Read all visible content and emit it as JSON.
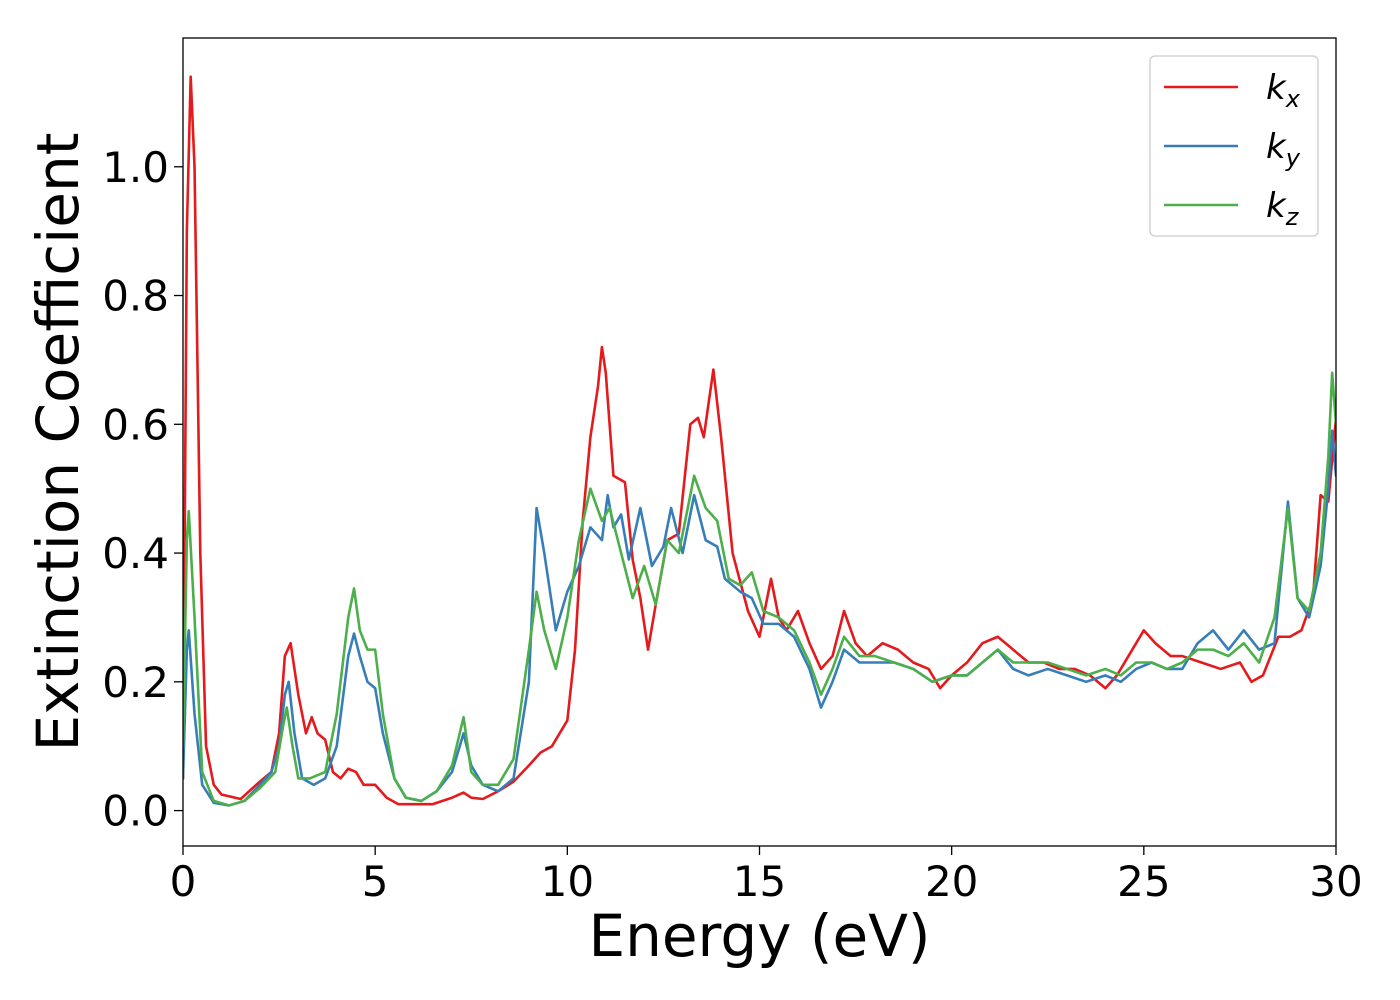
{
  "chart_data": {
    "type": "line",
    "title": "",
    "xlabel": "Energy (eV)",
    "ylabel": "Extinction Coefficient",
    "xlim": [
      0,
      30
    ],
    "ylim": [
      -0.055,
      1.2
    ],
    "xticks": [
      0,
      5,
      10,
      15,
      20,
      25,
      30
    ],
    "xtick_labels": [
      "0",
      "5",
      "10",
      "15",
      "20",
      "25",
      "30"
    ],
    "yticks": [
      0.0,
      0.2,
      0.4,
      0.6,
      0.8,
      1.0
    ],
    "ytick_labels": [
      "0.0",
      "0.2",
      "0.4",
      "0.6",
      "0.8",
      "1.0"
    ],
    "grid": false,
    "legend_position": "top-right",
    "series": [
      {
        "name": "k_x",
        "label_base": "k",
        "label_sub": "x",
        "color": "#e41a1c",
        "points": [
          [
            0,
            0.05
          ],
          [
            0.1,
            0.9
          ],
          [
            0.2,
            1.14
          ],
          [
            0.3,
            1.0
          ],
          [
            0.45,
            0.4
          ],
          [
            0.6,
            0.1
          ],
          [
            0.8,
            0.04
          ],
          [
            1.0,
            0.025
          ],
          [
            1.5,
            0.018
          ],
          [
            2.0,
            0.045
          ],
          [
            2.3,
            0.06
          ],
          [
            2.5,
            0.12
          ],
          [
            2.65,
            0.24
          ],
          [
            2.8,
            0.26
          ],
          [
            3.0,
            0.18
          ],
          [
            3.2,
            0.12
          ],
          [
            3.35,
            0.145
          ],
          [
            3.5,
            0.12
          ],
          [
            3.7,
            0.11
          ],
          [
            3.9,
            0.06
          ],
          [
            4.1,
            0.05
          ],
          [
            4.3,
            0.065
          ],
          [
            4.5,
            0.06
          ],
          [
            4.7,
            0.04
          ],
          [
            5.0,
            0.04
          ],
          [
            5.3,
            0.02
          ],
          [
            5.6,
            0.01
          ],
          [
            6.0,
            0.01
          ],
          [
            6.5,
            0.01
          ],
          [
            7.0,
            0.02
          ],
          [
            7.3,
            0.028
          ],
          [
            7.5,
            0.02
          ],
          [
            7.8,
            0.018
          ],
          [
            8.2,
            0.03
          ],
          [
            8.6,
            0.045
          ],
          [
            9.0,
            0.07
          ],
          [
            9.3,
            0.09
          ],
          [
            9.6,
            0.1
          ],
          [
            10.0,
            0.14
          ],
          [
            10.2,
            0.25
          ],
          [
            10.4,
            0.45
          ],
          [
            10.6,
            0.58
          ],
          [
            10.8,
            0.66
          ],
          [
            10.9,
            0.72
          ],
          [
            11.0,
            0.68
          ],
          [
            11.2,
            0.52
          ],
          [
            11.5,
            0.51
          ],
          [
            11.7,
            0.39
          ],
          [
            11.9,
            0.33
          ],
          [
            12.1,
            0.25
          ],
          [
            12.3,
            0.32
          ],
          [
            12.6,
            0.42
          ],
          [
            12.9,
            0.43
          ],
          [
            13.2,
            0.6
          ],
          [
            13.4,
            0.61
          ],
          [
            13.55,
            0.58
          ],
          [
            13.8,
            0.685
          ],
          [
            14.0,
            0.58
          ],
          [
            14.3,
            0.4
          ],
          [
            14.7,
            0.31
          ],
          [
            15.0,
            0.27
          ],
          [
            15.3,
            0.36
          ],
          [
            15.5,
            0.3
          ],
          [
            15.7,
            0.28
          ],
          [
            16.0,
            0.31
          ],
          [
            16.3,
            0.26
          ],
          [
            16.6,
            0.22
          ],
          [
            16.9,
            0.24
          ],
          [
            17.2,
            0.31
          ],
          [
            17.5,
            0.26
          ],
          [
            17.8,
            0.24
          ],
          [
            18.2,
            0.26
          ],
          [
            18.6,
            0.25
          ],
          [
            19.0,
            0.23
          ],
          [
            19.4,
            0.22
          ],
          [
            19.7,
            0.19
          ],
          [
            20.0,
            0.21
          ],
          [
            20.4,
            0.23
          ],
          [
            20.8,
            0.26
          ],
          [
            21.2,
            0.27
          ],
          [
            21.6,
            0.25
          ],
          [
            22.0,
            0.23
          ],
          [
            22.4,
            0.23
          ],
          [
            22.8,
            0.22
          ],
          [
            23.2,
            0.22
          ],
          [
            23.6,
            0.21
          ],
          [
            24.0,
            0.19
          ],
          [
            24.3,
            0.21
          ],
          [
            24.6,
            0.24
          ],
          [
            25.0,
            0.28
          ],
          [
            25.3,
            0.26
          ],
          [
            25.7,
            0.24
          ],
          [
            26.0,
            0.24
          ],
          [
            26.5,
            0.23
          ],
          [
            27.0,
            0.22
          ],
          [
            27.5,
            0.23
          ],
          [
            27.8,
            0.2
          ],
          [
            28.1,
            0.21
          ],
          [
            28.5,
            0.27
          ],
          [
            28.8,
            0.27
          ],
          [
            29.1,
            0.28
          ],
          [
            29.4,
            0.33
          ],
          [
            29.6,
            0.49
          ],
          [
            29.8,
            0.48
          ],
          [
            30.0,
            0.61
          ]
        ]
      },
      {
        "name": "k_y",
        "label_base": "k",
        "label_sub": "y",
        "color": "#377eb8",
        "points": [
          [
            0,
            0.05
          ],
          [
            0.1,
            0.25
          ],
          [
            0.15,
            0.28
          ],
          [
            0.3,
            0.15
          ],
          [
            0.5,
            0.04
          ],
          [
            0.8,
            0.012
          ],
          [
            1.2,
            0.008
          ],
          [
            1.6,
            0.015
          ],
          [
            2.0,
            0.04
          ],
          [
            2.3,
            0.06
          ],
          [
            2.5,
            0.1
          ],
          [
            2.65,
            0.18
          ],
          [
            2.75,
            0.2
          ],
          [
            2.9,
            0.12
          ],
          [
            3.1,
            0.05
          ],
          [
            3.4,
            0.04
          ],
          [
            3.7,
            0.05
          ],
          [
            4.0,
            0.1
          ],
          [
            4.3,
            0.24
          ],
          [
            4.45,
            0.275
          ],
          [
            4.6,
            0.24
          ],
          [
            4.8,
            0.2
          ],
          [
            5.0,
            0.19
          ],
          [
            5.2,
            0.12
          ],
          [
            5.5,
            0.05
          ],
          [
            5.8,
            0.02
          ],
          [
            6.2,
            0.015
          ],
          [
            6.6,
            0.03
          ],
          [
            7.0,
            0.06
          ],
          [
            7.3,
            0.12
          ],
          [
            7.5,
            0.07
          ],
          [
            7.8,
            0.04
          ],
          [
            8.2,
            0.03
          ],
          [
            8.6,
            0.05
          ],
          [
            9.0,
            0.2
          ],
          [
            9.2,
            0.47
          ],
          [
            9.4,
            0.4
          ],
          [
            9.7,
            0.28
          ],
          [
            10.0,
            0.34
          ],
          [
            10.3,
            0.38
          ],
          [
            10.6,
            0.44
          ],
          [
            10.9,
            0.42
          ],
          [
            11.05,
            0.49
          ],
          [
            11.2,
            0.44
          ],
          [
            11.4,
            0.46
          ],
          [
            11.6,
            0.39
          ],
          [
            11.9,
            0.47
          ],
          [
            12.2,
            0.38
          ],
          [
            12.5,
            0.41
          ],
          [
            12.7,
            0.47
          ],
          [
            13.0,
            0.4
          ],
          [
            13.3,
            0.49
          ],
          [
            13.6,
            0.42
          ],
          [
            13.9,
            0.41
          ],
          [
            14.1,
            0.36
          ],
          [
            14.5,
            0.34
          ],
          [
            14.8,
            0.33
          ],
          [
            15.1,
            0.29
          ],
          [
            15.5,
            0.29
          ],
          [
            15.9,
            0.27
          ],
          [
            16.3,
            0.22
          ],
          [
            16.6,
            0.16
          ],
          [
            16.9,
            0.2
          ],
          [
            17.2,
            0.25
          ],
          [
            17.6,
            0.23
          ],
          [
            18.0,
            0.23
          ],
          [
            18.5,
            0.23
          ],
          [
            19.0,
            0.22
          ],
          [
            19.5,
            0.2
          ],
          [
            20.0,
            0.21
          ],
          [
            20.4,
            0.21
          ],
          [
            20.8,
            0.23
          ],
          [
            21.2,
            0.25
          ],
          [
            21.6,
            0.22
          ],
          [
            22.0,
            0.21
          ],
          [
            22.5,
            0.22
          ],
          [
            23.0,
            0.21
          ],
          [
            23.5,
            0.2
          ],
          [
            24.0,
            0.21
          ],
          [
            24.4,
            0.2
          ],
          [
            24.8,
            0.22
          ],
          [
            25.2,
            0.23
          ],
          [
            25.6,
            0.22
          ],
          [
            26.0,
            0.22
          ],
          [
            26.4,
            0.26
          ],
          [
            26.8,
            0.28
          ],
          [
            27.2,
            0.25
          ],
          [
            27.6,
            0.28
          ],
          [
            28.0,
            0.25
          ],
          [
            28.4,
            0.26
          ],
          [
            28.75,
            0.48
          ],
          [
            29.0,
            0.33
          ],
          [
            29.3,
            0.3
          ],
          [
            29.6,
            0.38
          ],
          [
            29.8,
            0.5
          ],
          [
            29.9,
            0.59
          ],
          [
            30.0,
            0.52
          ]
        ]
      },
      {
        "name": "k_z",
        "label_base": "k",
        "label_sub": "z",
        "color": "#4daf4a",
        "points": [
          [
            0,
            0.1
          ],
          [
            0.1,
            0.42
          ],
          [
            0.15,
            0.465
          ],
          [
            0.3,
            0.3
          ],
          [
            0.5,
            0.06
          ],
          [
            0.8,
            0.015
          ],
          [
            1.2,
            0.008
          ],
          [
            1.6,
            0.015
          ],
          [
            2.0,
            0.035
          ],
          [
            2.4,
            0.06
          ],
          [
            2.6,
            0.13
          ],
          [
            2.7,
            0.16
          ],
          [
            2.85,
            0.1
          ],
          [
            3.0,
            0.05
          ],
          [
            3.3,
            0.05
          ],
          [
            3.7,
            0.06
          ],
          [
            4.0,
            0.15
          ],
          [
            4.3,
            0.3
          ],
          [
            4.45,
            0.345
          ],
          [
            4.6,
            0.28
          ],
          [
            4.8,
            0.25
          ],
          [
            5.0,
            0.25
          ],
          [
            5.2,
            0.15
          ],
          [
            5.5,
            0.05
          ],
          [
            5.8,
            0.02
          ],
          [
            6.2,
            0.015
          ],
          [
            6.6,
            0.03
          ],
          [
            7.0,
            0.07
          ],
          [
            7.3,
            0.145
          ],
          [
            7.5,
            0.06
          ],
          [
            7.8,
            0.04
          ],
          [
            8.2,
            0.04
          ],
          [
            8.6,
            0.08
          ],
          [
            9.0,
            0.25
          ],
          [
            9.2,
            0.34
          ],
          [
            9.4,
            0.28
          ],
          [
            9.7,
            0.22
          ],
          [
            10.0,
            0.3
          ],
          [
            10.3,
            0.42
          ],
          [
            10.6,
            0.5
          ],
          [
            10.9,
            0.45
          ],
          [
            11.1,
            0.47
          ],
          [
            11.4,
            0.4
          ],
          [
            11.7,
            0.33
          ],
          [
            12.0,
            0.38
          ],
          [
            12.3,
            0.32
          ],
          [
            12.6,
            0.42
          ],
          [
            12.9,
            0.4
          ],
          [
            13.3,
            0.52
          ],
          [
            13.6,
            0.47
          ],
          [
            13.9,
            0.45
          ],
          [
            14.2,
            0.36
          ],
          [
            14.5,
            0.35
          ],
          [
            14.8,
            0.37
          ],
          [
            15.1,
            0.31
          ],
          [
            15.5,
            0.3
          ],
          [
            15.9,
            0.28
          ],
          [
            16.3,
            0.23
          ],
          [
            16.6,
            0.18
          ],
          [
            16.9,
            0.22
          ],
          [
            17.2,
            0.27
          ],
          [
            17.6,
            0.24
          ],
          [
            18.0,
            0.24
          ],
          [
            18.5,
            0.23
          ],
          [
            19.0,
            0.22
          ],
          [
            19.5,
            0.2
          ],
          [
            20.0,
            0.21
          ],
          [
            20.4,
            0.21
          ],
          [
            20.8,
            0.23
          ],
          [
            21.2,
            0.25
          ],
          [
            21.6,
            0.23
          ],
          [
            22.0,
            0.23
          ],
          [
            22.5,
            0.23
          ],
          [
            23.0,
            0.22
          ],
          [
            23.5,
            0.21
          ],
          [
            24.0,
            0.22
          ],
          [
            24.4,
            0.21
          ],
          [
            24.8,
            0.23
          ],
          [
            25.2,
            0.23
          ],
          [
            25.6,
            0.22
          ],
          [
            26.0,
            0.23
          ],
          [
            26.4,
            0.25
          ],
          [
            26.8,
            0.25
          ],
          [
            27.2,
            0.24
          ],
          [
            27.6,
            0.26
          ],
          [
            28.0,
            0.23
          ],
          [
            28.4,
            0.3
          ],
          [
            28.75,
            0.47
          ],
          [
            29.0,
            0.33
          ],
          [
            29.3,
            0.31
          ],
          [
            29.6,
            0.4
          ],
          [
            29.8,
            0.55
          ],
          [
            29.9,
            0.68
          ],
          [
            30.0,
            0.6
          ]
        ]
      }
    ]
  }
}
